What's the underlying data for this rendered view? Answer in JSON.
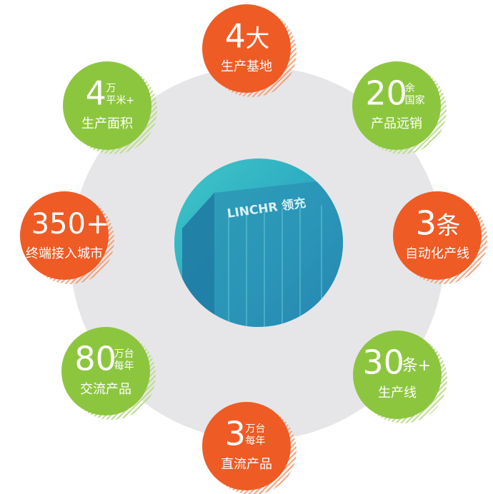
{
  "center": {
    "sign": "LINCHR 领充"
  },
  "nodes": [
    {
      "number": "4",
      "unit": [
        "大"
      ],
      "caption": "生产基地",
      "color": "#ef5b25"
    },
    {
      "number": "20",
      "unit": [
        "余",
        "国家"
      ],
      "caption": "产品远销",
      "color": "#8cc63f"
    },
    {
      "number": "3",
      "unit": [
        "条"
      ],
      "caption": "自动化产线",
      "color": "#ef5b25"
    },
    {
      "number": "30",
      "unit": [
        "条+"
      ],
      "caption": "生产线",
      "color": "#8cc63f"
    },
    {
      "number": "3",
      "unit": [
        "万台",
        "每年"
      ],
      "caption": "直流产品",
      "color": "#ef5b25"
    },
    {
      "number": "80",
      "unit": [
        "万台",
        "每年"
      ],
      "caption": "交流产品",
      "color": "#8cc63f"
    },
    {
      "number": "350+",
      "unit": [],
      "caption": "终端接入城市",
      "color": "#ef5b25"
    },
    {
      "number": "4",
      "unit": [
        "万",
        "平米+"
      ],
      "caption": "生产面积",
      "color": "#8cc63f"
    }
  ]
}
